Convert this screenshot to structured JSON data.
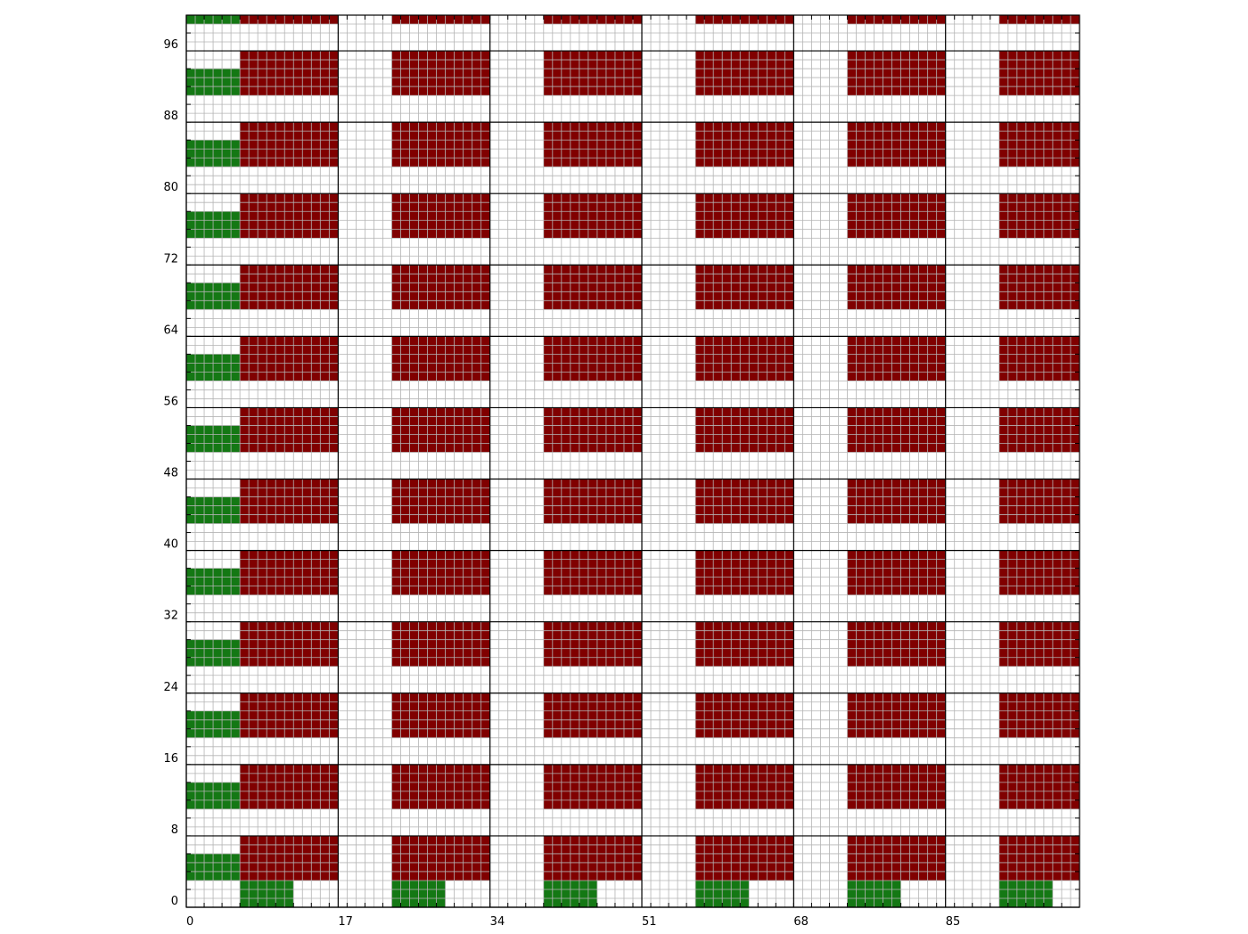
{
  "grid": {
    "x_range": [
      0,
      100
    ],
    "y_range": [
      0,
      100
    ],
    "major_x_step": 17,
    "major_y_step": 8,
    "minor_step": 1
  },
  "axes": {
    "x_tick_labels": [
      "0",
      "17",
      "34",
      "51",
      "68",
      "85"
    ],
    "y_tick_labels": [
      "0",
      "8",
      "16",
      "24",
      "32",
      "40",
      "48",
      "56",
      "64",
      "72",
      "80",
      "88",
      "96"
    ]
  },
  "colors": {
    "red": "#800000",
    "green": "#147814",
    "minor_grid": "#b4b4b4",
    "major_grid": "#000000",
    "background": "#ffffff"
  },
  "pattern": {
    "column_starts": [
      0,
      17,
      34,
      51,
      68,
      85
    ],
    "block_x_offset": 6,
    "block_width": 11,
    "block_y_start": 3,
    "block_height": 5,
    "block_y_period": 8,
    "block_count": 13,
    "left_green_width": 6,
    "left_green_height": 3,
    "bottom_green_x_offset": 6,
    "bottom_green_width": 6,
    "bottom_green_height": 3
  },
  "regions": {
    "red_label": "red-block",
    "green_label": "green-block"
  }
}
